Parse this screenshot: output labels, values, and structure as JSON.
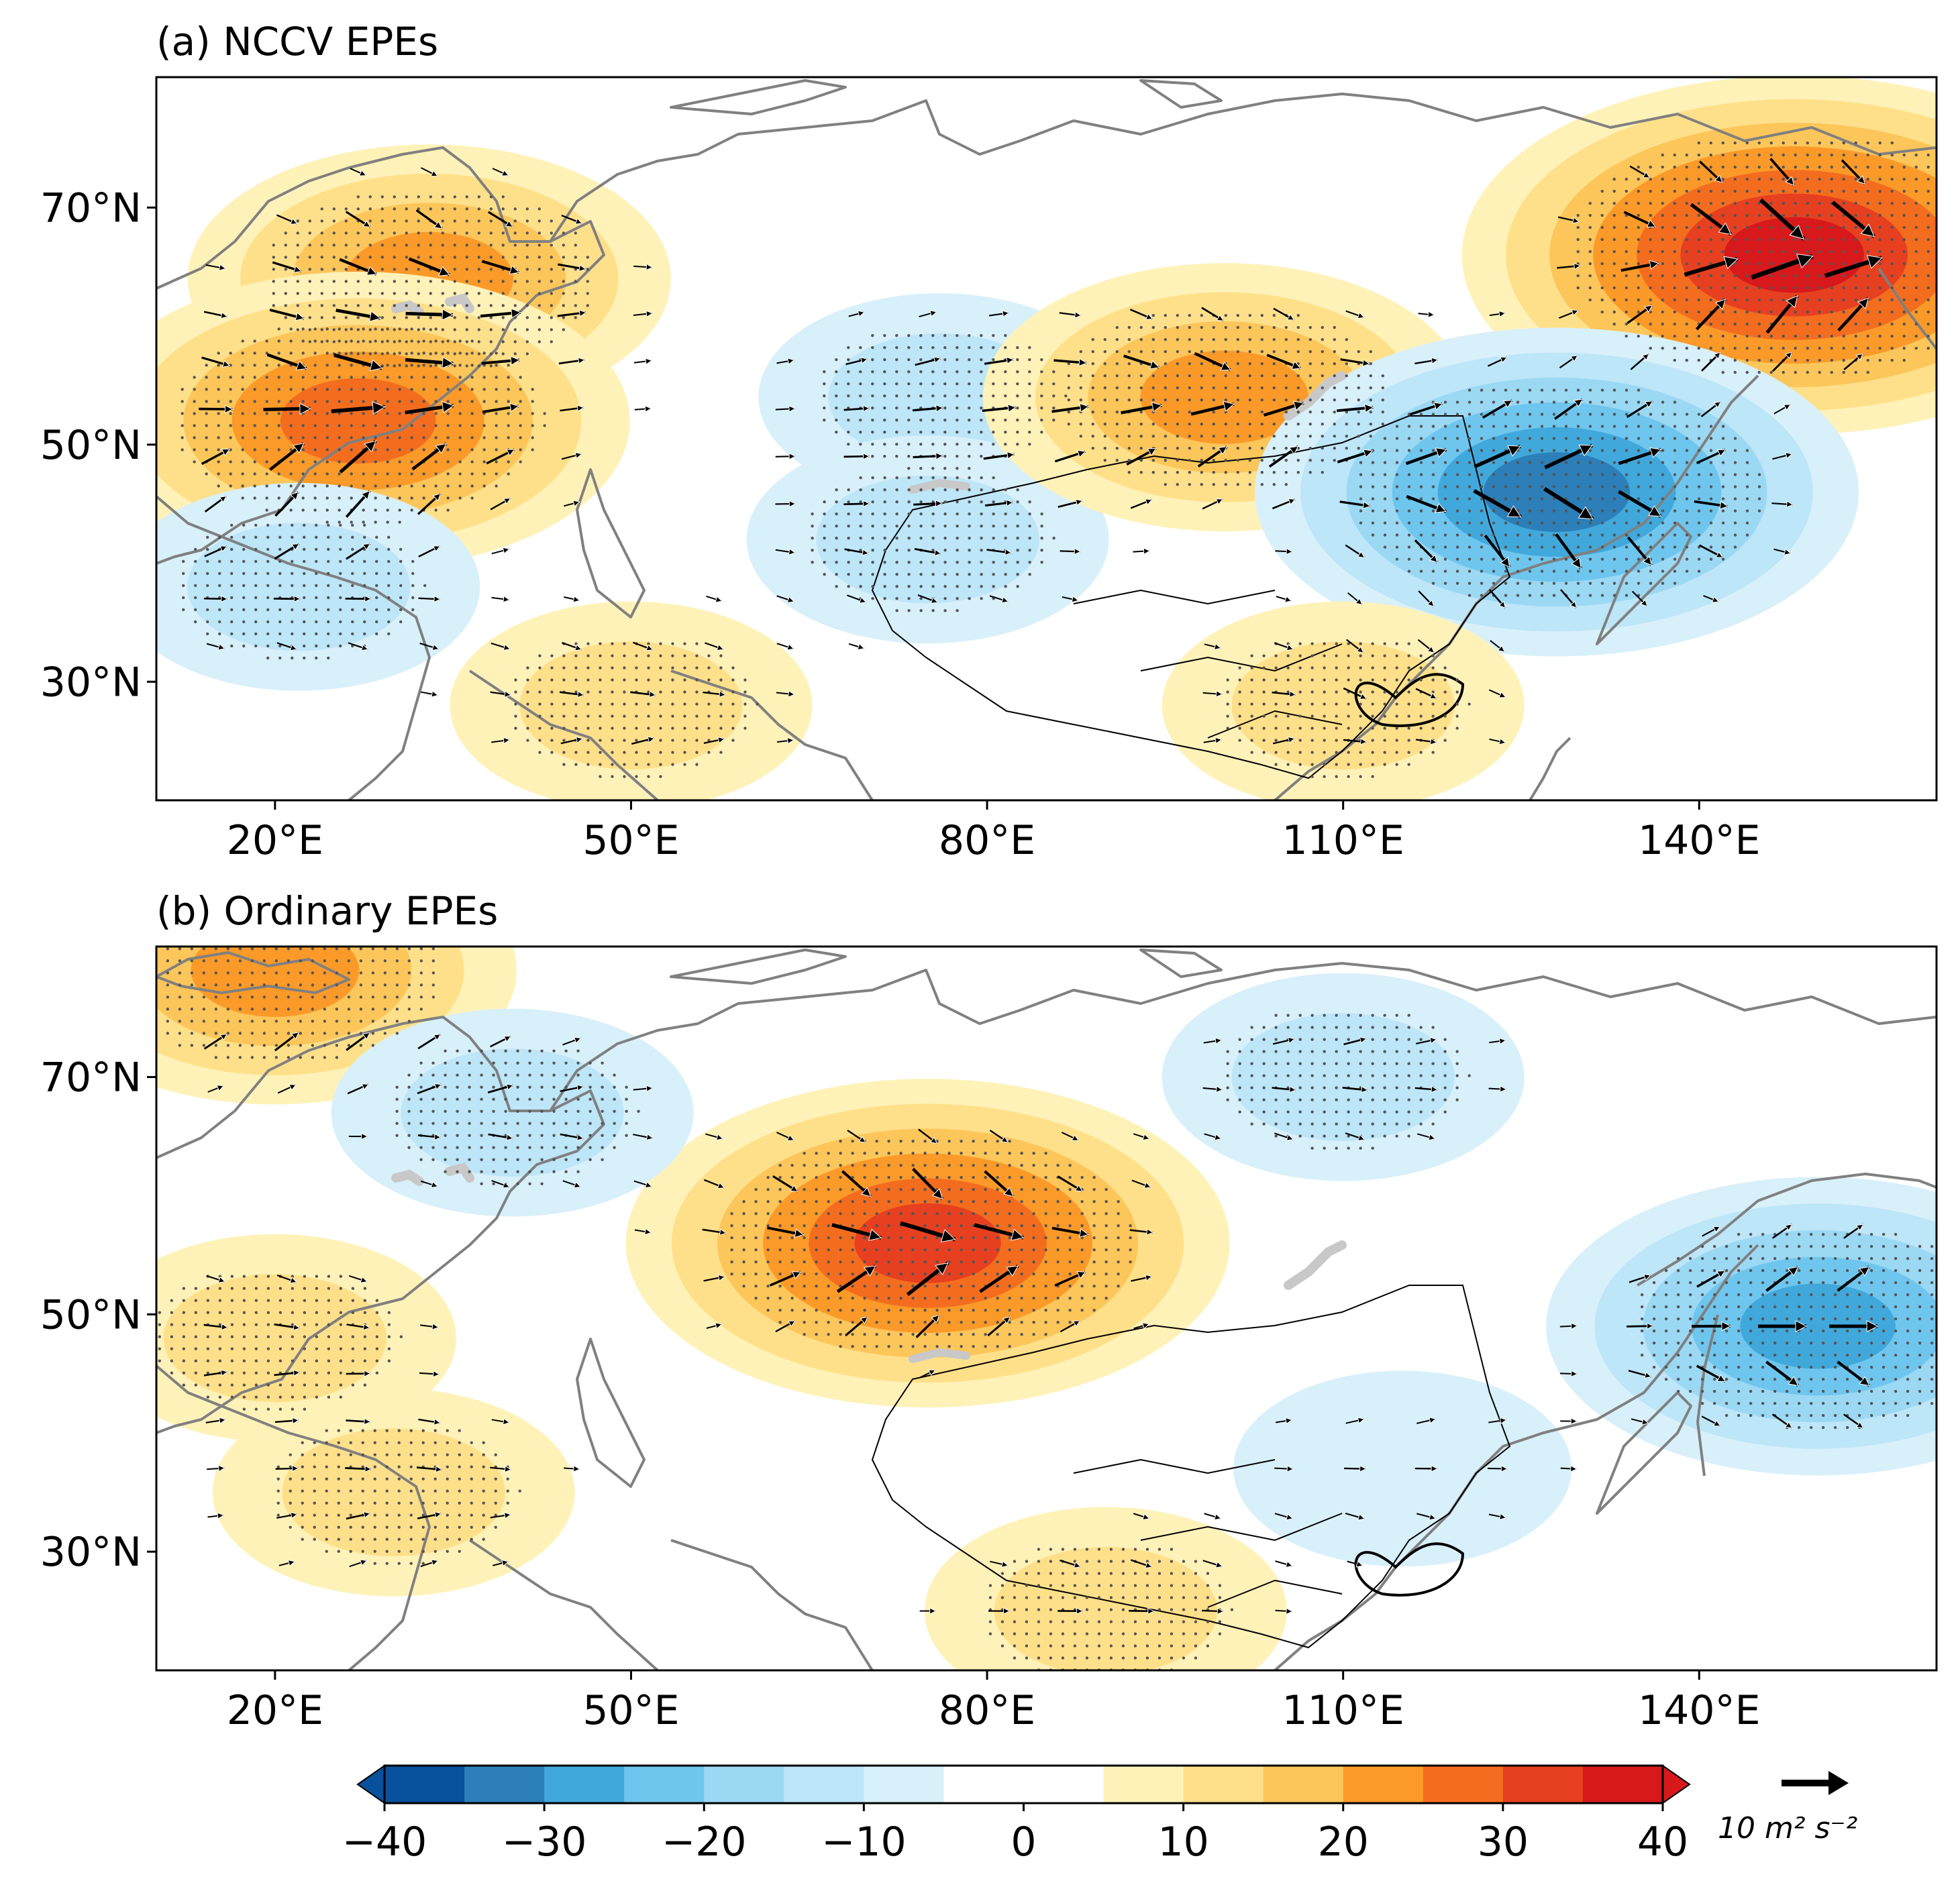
{
  "chart_data": [
    {
      "type": "heatmap",
      "panel": "a",
      "title": "(a) NCCV EPEs",
      "overlay": "wave activity flux vectors",
      "x_ticks": [
        "20°E",
        "50°E",
        "80°E",
        "110°E",
        "140°E"
      ],
      "y_ticks": [
        "70°N",
        "50°N",
        "30°N"
      ],
      "xlim": [
        10,
        160
      ],
      "ylim": [
        20,
        81
      ],
      "anomaly_centers": [
        {
          "lon": 33,
          "lat": 64,
          "value": 20
        },
        {
          "lon": 27,
          "lat": 52,
          "value": 25
        },
        {
          "lon": 76,
          "lat": 54,
          "value": -10
        },
        {
          "lon": 75,
          "lat": 42,
          "value": -10
        },
        {
          "lon": 22,
          "lat": 38,
          "value": -10
        },
        {
          "lon": 100,
          "lat": 54,
          "value": 20
        },
        {
          "lon": 148,
          "lat": 66,
          "value": 35
        },
        {
          "lon": 128,
          "lat": 46,
          "value": -30
        },
        {
          "lon": 50,
          "lat": 28,
          "value": 10
        },
        {
          "lon": 110,
          "lat": 28,
          "value": 10
        }
      ]
    },
    {
      "type": "heatmap",
      "panel": "b",
      "title": "(b) Ordinary EPEs",
      "overlay": "wave activity flux vectors",
      "x_ticks": [
        "20°E",
        "50°E",
        "80°E",
        "110°E",
        "140°E"
      ],
      "y_ticks": [
        "70°N",
        "50°N",
        "30°N"
      ],
      "xlim": [
        10,
        160
      ],
      "ylim": [
        20,
        81
      ],
      "anomaly_centers": [
        {
          "lon": 20,
          "lat": 79,
          "value": 20
        },
        {
          "lon": 75,
          "lat": 56,
          "value": 30
        },
        {
          "lon": 40,
          "lat": 67,
          "value": -10
        },
        {
          "lon": 110,
          "lat": 70,
          "value": -10
        },
        {
          "lon": 150,
          "lat": 49,
          "value": -25
        },
        {
          "lon": 30,
          "lat": 35,
          "value": 10
        },
        {
          "lon": 20,
          "lat": 48,
          "value": 10
        },
        {
          "lon": 115,
          "lat": 37,
          "value": -8
        },
        {
          "lon": 90,
          "lat": 25,
          "value": 10
        }
      ]
    }
  ],
  "colorbar": {
    "ticks": [
      "−40",
      "−30",
      "−20",
      "−10",
      "0",
      "10",
      "20",
      "30",
      "40"
    ],
    "colors": [
      "#08519c",
      "#2c7fb8",
      "#41a8dc",
      "#6ec6ee",
      "#9bd8f4",
      "#bde6f8",
      "#d8f0fa",
      "#ffffff",
      "#ffffff",
      "#fff2b8",
      "#ffe08a",
      "#fcc65a",
      "#fb9a29",
      "#f46d1f",
      "#e64020",
      "#d7191c"
    ]
  },
  "reference_vector": {
    "label": "10 m² s⁻²"
  }
}
